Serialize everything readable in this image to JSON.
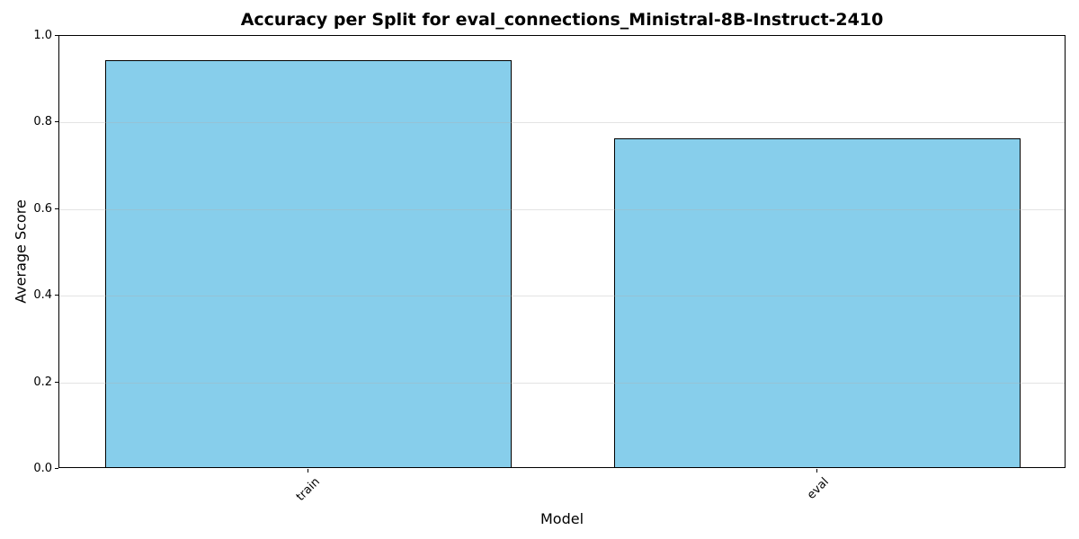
{
  "chart_data": {
    "type": "bar",
    "title": "Accuracy per Split for eval_connections_Ministral-8B-Instruct-2410",
    "xlabel": "Model",
    "ylabel": "Average Score",
    "categories": [
      "train",
      "eval"
    ],
    "values": [
      0.94,
      0.76
    ],
    "ylim": [
      0.0,
      1.0
    ],
    "yticks": [
      0.0,
      0.2,
      0.4,
      0.6,
      0.8,
      1.0
    ],
    "ytick_labels": [
      "0.0",
      "0.2",
      "0.4",
      "0.6",
      "0.8",
      "1.0"
    ],
    "x_tick_rotation": 45,
    "bar_width_fraction": 0.8,
    "bar_color": "#87CEEB",
    "bar_edge_color": "#000000",
    "grid": true,
    "grid_axis": "y",
    "grid_color": "#b0b0b0",
    "grid_alpha": 0.35,
    "background_color": "#ffffff",
    "spine_color": "#000000",
    "legend_position": "none"
  }
}
